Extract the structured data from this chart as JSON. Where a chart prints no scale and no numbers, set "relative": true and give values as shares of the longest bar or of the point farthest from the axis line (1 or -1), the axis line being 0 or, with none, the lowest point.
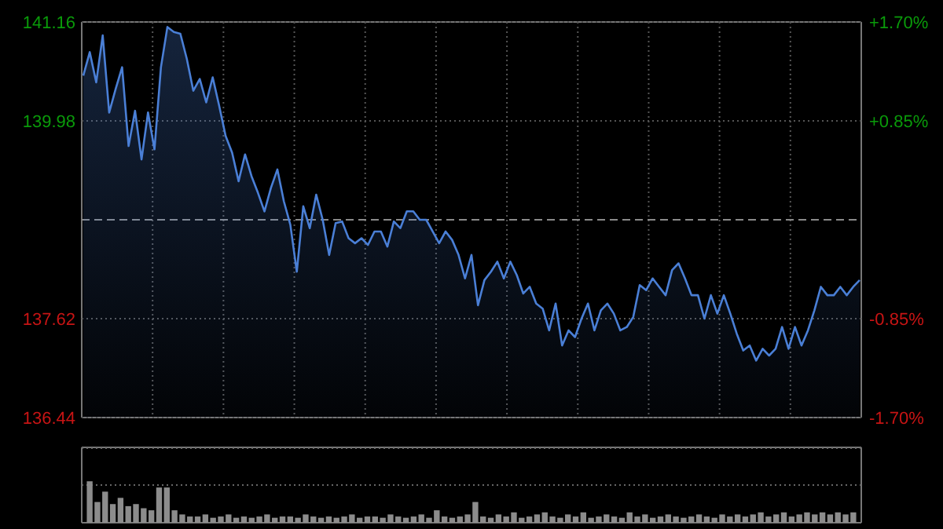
{
  "chart_data": [
    {
      "type": "area",
      "categories": [
        null,
        null,
        null,
        null,
        null,
        null,
        null,
        null,
        null,
        null,
        null,
        null,
        null,
        null,
        null,
        null,
        null,
        null,
        null,
        null,
        null,
        null,
        null,
        null,
        null,
        null,
        null,
        null,
        null,
        null,
        null,
        null,
        null,
        null,
        null,
        null,
        null,
        null,
        null,
        null,
        null,
        null,
        null,
        null,
        null,
        null,
        null,
        null,
        null,
        null,
        null,
        null,
        null,
        null,
        null,
        null,
        null,
        null,
        null,
        null,
        null,
        null,
        null,
        null,
        null,
        null,
        null,
        null,
        null,
        null,
        null,
        null,
        null,
        null,
        null,
        null,
        null,
        null,
        null,
        null,
        null,
        null,
        null,
        null,
        null,
        null,
        null,
        null,
        null,
        null,
        null,
        null,
        null,
        null,
        null,
        null,
        null,
        null,
        null,
        null,
        null,
        null,
        null,
        null,
        null,
        null,
        null,
        null,
        null,
        null,
        null,
        null,
        null,
        null,
        null,
        null,
        null,
        null,
        null,
        null,
        null
      ],
      "ylim": [
        136.44,
        141.16
      ],
      "yticks": [
        136.44,
        137.62,
        139.98,
        141.16
      ],
      "y2lim": [
        -1.7,
        1.7
      ],
      "y2ticks": [
        {
          "value": -1.7,
          "label": "-1.70%"
        },
        {
          "value": -0.85,
          "label": "-0.85%"
        },
        {
          "value": 0.85,
          "label": "+0.85%"
        },
        {
          "value": 1.7,
          "label": "+1.70%"
        }
      ],
      "grid": true,
      "ref_lines": [
        {
          "axis": "y",
          "value": 138.8,
          "line_style": "dashed",
          "color": "#8a8a8a"
        }
      ],
      "series": [
        {
          "color": "#4a7fd6",
          "values": [
            140.52,
            140.8,
            140.44,
            141.0,
            140.08,
            140.36,
            140.62,
            139.68,
            140.1,
            139.52,
            140.08,
            139.64,
            140.62,
            141.1,
            141.04,
            141.02,
            140.72,
            140.34,
            140.48,
            140.2,
            140.5,
            140.16,
            139.8,
            139.6,
            139.26,
            139.58,
            139.32,
            139.12,
            138.9,
            139.18,
            139.4,
            139.02,
            138.74,
            138.18,
            138.96,
            138.7,
            139.1,
            138.8,
            138.38,
            138.76,
            138.78,
            138.58,
            138.52,
            138.58,
            138.5,
            138.66,
            138.66,
            138.48,
            138.78,
            138.7,
            138.9,
            138.9,
            138.8,
            138.8,
            138.66,
            138.52,
            138.66,
            138.56,
            138.38,
            138.1,
            138.38,
            137.78,
            138.08,
            138.18,
            138.3,
            138.1,
            138.3,
            138.14,
            137.92,
            138.0,
            137.8,
            137.74,
            137.48,
            137.8,
            137.3,
            137.48,
            137.4,
            137.62,
            137.8,
            137.48,
            137.72,
            137.8,
            137.68,
            137.48,
            137.52,
            137.64,
            138.02,
            137.96,
            138.1,
            138.0,
            137.9,
            138.2,
            138.28,
            138.1,
            137.9,
            137.9,
            137.62,
            137.9,
            137.68,
            137.9,
            137.68,
            137.44,
            137.24,
            137.3,
            137.12,
            137.26,
            137.18,
            137.26,
            137.52,
            137.26,
            137.52,
            137.3,
            137.48,
            137.72,
            138.0,
            137.9,
            137.9,
            138.0,
            137.9,
            138.0,
            138.08
          ]
        }
      ]
    },
    {
      "type": "bar",
      "relative": true,
      "grid": true,
      "color": "#8c8c8c",
      "categories": [
        null,
        null,
        null,
        null,
        null,
        null,
        null,
        null,
        null,
        null,
        null,
        null,
        null,
        null,
        null,
        null,
        null,
        null,
        null,
        null,
        null,
        null,
        null,
        null,
        null,
        null,
        null,
        null,
        null,
        null,
        null,
        null,
        null,
        null,
        null,
        null,
        null,
        null,
        null,
        null,
        null,
        null,
        null,
        null,
        null,
        null,
        null,
        null,
        null,
        null,
        null,
        null,
        null,
        null,
        null,
        null,
        null,
        null,
        null,
        null,
        null,
        null,
        null,
        null,
        null,
        null,
        null,
        null,
        null,
        null,
        null,
        null,
        null,
        null,
        null,
        null,
        null,
        null,
        null,
        null,
        null,
        null,
        null,
        null,
        null,
        null,
        null,
        null,
        null,
        null,
        null,
        null,
        null,
        null,
        null,
        null,
        null,
        null,
        null,
        null
      ],
      "values": [
        1,
        0.5,
        0.75,
        0.45,
        0.6,
        0.4,
        0.45,
        0.35,
        0.3,
        0.85,
        0.85,
        0.3,
        0.2,
        0.15,
        0.15,
        0.2,
        0.12,
        0.15,
        0.2,
        0.12,
        0.15,
        0.12,
        0.15,
        0.2,
        0.12,
        0.15,
        0.15,
        0.12,
        0.2,
        0.15,
        0.12,
        0.15,
        0.12,
        0.15,
        0.2,
        0.12,
        0.15,
        0.15,
        0.12,
        0.2,
        0.15,
        0.12,
        0.15,
        0.2,
        0.12,
        0.3,
        0.15,
        0.12,
        0.15,
        0.2,
        0.5,
        0.15,
        0.12,
        0.2,
        0.15,
        0.25,
        0.12,
        0.15,
        0.2,
        0.25,
        0.15,
        0.12,
        0.2,
        0.15,
        0.25,
        0.12,
        0.15,
        0.2,
        0.15,
        0.12,
        0.25,
        0.15,
        0.2,
        0.12,
        0.15,
        0.2,
        0.15,
        0.12,
        0.15,
        0.2,
        0.15,
        0.12,
        0.2,
        0.15,
        0.2,
        0.15,
        0.2,
        0.25,
        0.15,
        0.2,
        0.25,
        0.15,
        0.2,
        0.25,
        0.2,
        0.25,
        0.2,
        0.25,
        0.2,
        0.25
      ]
    }
  ]
}
